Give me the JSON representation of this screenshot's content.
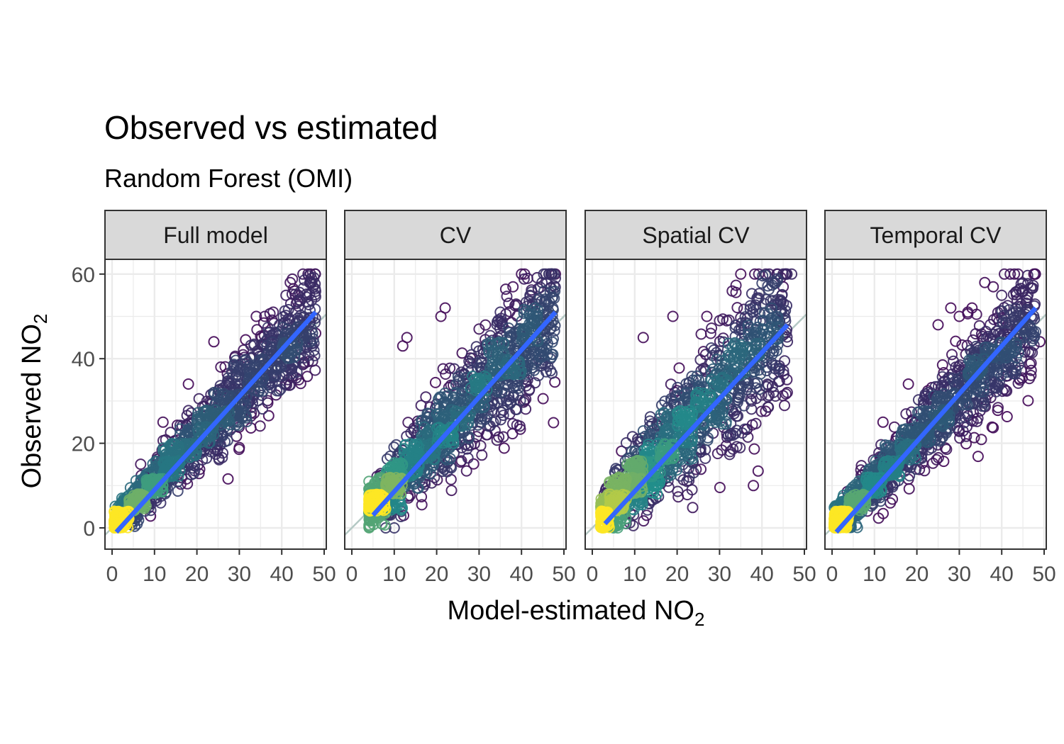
{
  "chart_data": {
    "type": "scatter",
    "title": "Observed vs estimated",
    "subtitle": "Random Forest (OMI)",
    "xlabel": {
      "base": "Model-estimated NO",
      "sub": "2"
    },
    "ylabel": {
      "base": "Observed NO",
      "sub": "2"
    },
    "xlim": [
      -3,
      50
    ],
    "ylim": [
      -5,
      60
    ],
    "x_ticks": [
      0,
      10,
      20,
      30,
      40,
      50
    ],
    "y_ticks": [
      0,
      20,
      40,
      60
    ],
    "grid": true,
    "reference_line": "y = x",
    "colors": {
      "low_density": "#440154",
      "mid_density": "#21908c",
      "high_density": "#fde725",
      "fit_line": "#3366ff",
      "reference_line": "#b4c8c4",
      "strip_fill": "#d9d9d9",
      "panel_border": "#333333",
      "grid": "#ebebeb"
    },
    "panels": [
      {
        "label": "Full model",
        "fit": {
          "x": [
            1,
            48
          ],
          "y": [
            -1,
            51
          ]
        },
        "x_range": [
          0.5,
          48
        ],
        "spread_low": 1.8,
        "spread_high": 6.5,
        "bias": 1.2,
        "n": 1400,
        "outliers": [
          [
            42,
            58
          ],
          [
            45,
            60
          ],
          [
            47,
            59
          ],
          [
            43,
            56
          ],
          [
            36,
            50
          ],
          [
            38,
            51
          ],
          [
            41,
            55
          ],
          [
            30,
            19
          ],
          [
            12,
            25
          ],
          [
            18,
            34
          ],
          [
            44,
            35
          ],
          [
            46,
            44
          ],
          [
            48,
            46
          ],
          [
            24,
            44
          ],
          [
            34,
            50
          ]
        ]
      },
      {
        "label": "CV",
        "fit": {
          "x": [
            5,
            48
          ],
          "y": [
            3,
            51
          ]
        },
        "x_range": [
          4,
          48
        ],
        "spread_low": 2.5,
        "spread_high": 9,
        "bias": 1.5,
        "n": 1400,
        "outliers": [
          [
            40,
            60
          ],
          [
            48,
            60
          ],
          [
            38,
            57
          ],
          [
            42,
            55
          ],
          [
            45,
            52
          ],
          [
            21,
            50
          ],
          [
            13,
            45
          ],
          [
            12,
            43
          ],
          [
            35,
            51
          ],
          [
            30,
            47
          ],
          [
            44,
            36
          ],
          [
            8,
            0
          ],
          [
            10,
            0
          ],
          [
            7,
            1
          ],
          [
            22,
            52
          ]
        ]
      },
      {
        "label": "Spatial CV",
        "fit": {
          "x": [
            3,
            46
          ],
          "y": [
            1,
            48
          ]
        },
        "x_range": [
          2,
          46
        ],
        "spread_low": 2.5,
        "spread_high": 10,
        "bias": 2.5,
        "n": 1400,
        "outliers": [
          [
            35,
            60
          ],
          [
            47,
            60
          ],
          [
            45,
            57
          ],
          [
            41,
            54
          ],
          [
            42,
            52
          ],
          [
            33,
            56
          ],
          [
            12,
            45
          ],
          [
            27,
            50
          ],
          [
            30,
            49
          ],
          [
            44,
            37
          ],
          [
            6,
            0
          ],
          [
            5,
            0
          ],
          [
            8,
            1
          ],
          [
            19,
            50
          ],
          [
            38,
            52
          ]
        ]
      },
      {
        "label": "Temporal CV",
        "fit": {
          "x": [
            1,
            48
          ],
          "y": [
            -1,
            52
          ]
        },
        "x_range": [
          0.5,
          48
        ],
        "spread_low": 1.8,
        "spread_high": 7,
        "bias": 1.5,
        "n": 1400,
        "outliers": [
          [
            42,
            60
          ],
          [
            43,
            60
          ],
          [
            36,
            58
          ],
          [
            38,
            57
          ],
          [
            45,
            56
          ],
          [
            33,
            52
          ],
          [
            28,
            52
          ],
          [
            25,
            48
          ],
          [
            12,
            25
          ],
          [
            18,
            34
          ],
          [
            49,
            44
          ],
          [
            47,
            47
          ],
          [
            30,
            50
          ],
          [
            40,
            55
          ],
          [
            32,
            51
          ]
        ]
      }
    ]
  }
}
